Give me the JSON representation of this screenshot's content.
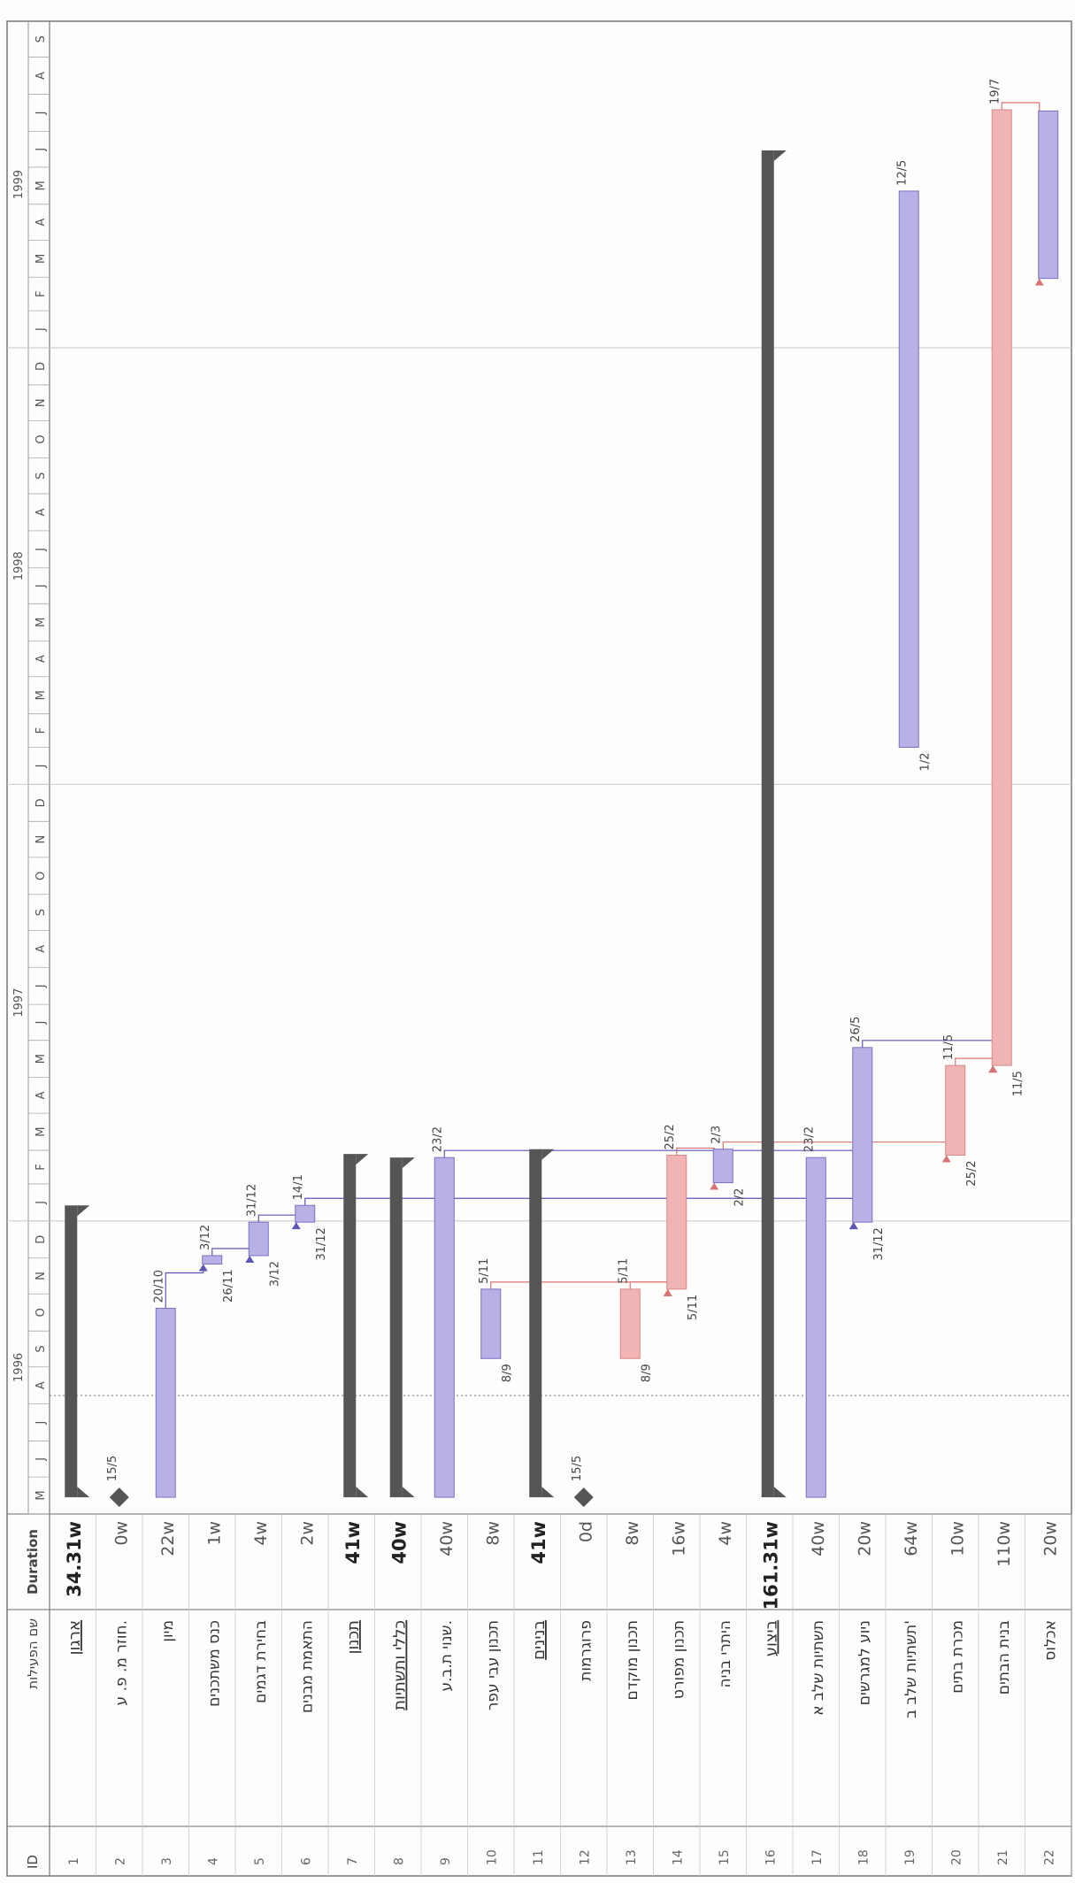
{
  "header": {
    "id_label": "ID",
    "name_label": "שם הפעילות",
    "duration_label": "Duration"
  },
  "chart_data": {
    "type": "gantt",
    "time_axis": {
      "start": "1996-05-01",
      "end": "1999-10-01",
      "years": [
        1996,
        1997,
        1998,
        1999
      ],
      "month_letters": [
        "J",
        "F",
        "M",
        "A",
        "M",
        "J",
        "J",
        "A",
        "S",
        "O",
        "N",
        "D"
      ]
    },
    "tasks": [
      {
        "id": 1,
        "name": "ארגון",
        "duration": "34.31w",
        "summary": true,
        "start": "1996-05-15",
        "finish": "1997-01-14"
      },
      {
        "id": 2,
        "name": "חוזר מ. פ. ע.",
        "duration": "0w",
        "milestone": true,
        "start": "1996-05-15",
        "label_right": "15/5"
      },
      {
        "id": 3,
        "name": "מיון",
        "duration": "22w",
        "start": "1996-05-15",
        "finish": "1996-10-20",
        "label_right": "20/10"
      },
      {
        "id": 4,
        "name": "כנס משתכנים",
        "duration": "1w",
        "start": "1996-11-26",
        "finish": "1996-12-03",
        "label_left": "26/11",
        "label_right": "3/12"
      },
      {
        "id": 5,
        "name": "בחירת דגמים",
        "duration": "4w",
        "start": "1996-12-03",
        "finish": "1996-12-31",
        "label_left": "3/12",
        "label_right": "31/12"
      },
      {
        "id": 6,
        "name": "התאמת מבנים",
        "duration": "2w",
        "start": "1996-12-31",
        "finish": "1997-01-14",
        "label_left": "31/12",
        "label_right": "14/1"
      },
      {
        "id": 7,
        "name": "תכנון",
        "duration": "41w",
        "summary": true,
        "start": "1996-05-15",
        "finish": "1997-02-26"
      },
      {
        "id": 8,
        "name": "כללי ותשתיות",
        "duration": "40w",
        "summary": true,
        "start": "1996-05-15",
        "finish": "1997-02-23"
      },
      {
        "id": 9,
        "name": "שנוי ת.ב.ע.",
        "duration": "40w",
        "start": "1996-05-15",
        "finish": "1997-02-23",
        "label_right": "23/2"
      },
      {
        "id": 10,
        "name": "תכנון עבי עפר",
        "duration": "8w",
        "start": "1996-09-08",
        "finish": "1996-11-05",
        "label_left": "8/9",
        "label_right": "5/11"
      },
      {
        "id": 11,
        "name": "בנינים",
        "duration": "41w",
        "summary": true,
        "start": "1996-05-15",
        "finish": "1997-03-02"
      },
      {
        "id": 12,
        "name": "פרוגרמות",
        "duration": "0d",
        "milestone": true,
        "start": "1996-05-15",
        "label_right": "15/5"
      },
      {
        "id": 13,
        "name": "תכנון מוקדם",
        "duration": "8w",
        "critical": true,
        "start": "1996-09-08",
        "finish": "1996-11-05",
        "label_left": "8/9",
        "label_right": "5/11"
      },
      {
        "id": 14,
        "name": "תכנון מפורט",
        "duration": "16w",
        "critical": true,
        "start": "1996-11-05",
        "finish": "1997-02-25",
        "label_left": "5/11",
        "label_right": "25/2"
      },
      {
        "id": 15,
        "name": "היתרי בניה",
        "duration": "4w",
        "start": "1997-02-02",
        "finish": "1997-03-02",
        "label_left": "2/2",
        "label_right": "2/3"
      },
      {
        "id": 16,
        "name": "ביצוע",
        "duration": "161.31w",
        "summary": true,
        "start": "1996-05-15",
        "finish": "1999-06-15"
      },
      {
        "id": 17,
        "name": "תשתיות שלב א",
        "duration": "40w",
        "start": "1996-05-15",
        "finish": "1997-02-23",
        "label_right": "23/2"
      },
      {
        "id": 18,
        "name": "ניוע למגרשים",
        "duration": "20w",
        "start": "1996-12-31",
        "finish": "1997-05-26",
        "label_left": "31/12",
        "label_right": "26/5"
      },
      {
        "id": 19,
        "name": "תשתיות שלב ב'",
        "duration": "64w",
        "start": "1998-02-01",
        "finish": "1999-05-12",
        "label_left": "1/2",
        "label_right": "12/5"
      },
      {
        "id": 20,
        "name": "מכרת בתים",
        "duration": "10w",
        "critical": true,
        "start": "1997-02-25",
        "finish": "1997-05-11",
        "label_left": "25/2",
        "label_right": "11/5"
      },
      {
        "id": 21,
        "name": "בנית הבתים",
        "duration": "110w",
        "critical": true,
        "start": "1997-05-11",
        "finish": "1999-07-19",
        "label_left": "11/5",
        "label_right": "19/7"
      },
      {
        "id": 22,
        "name": "אכלוס",
        "duration": "20w",
        "start": "1999-02-28",
        "finish": "1999-07-18"
      }
    ],
    "colors": {
      "task_fill": "#b7b1e6",
      "task_stroke": "#7a70c4",
      "critical_fill": "#f1b4b4",
      "critical_stroke": "#d98a8a",
      "summary": "#555555",
      "link_normal": "#5e55b8",
      "link_critical": "#d97474",
      "grid": "#c8c8c8"
    }
  }
}
